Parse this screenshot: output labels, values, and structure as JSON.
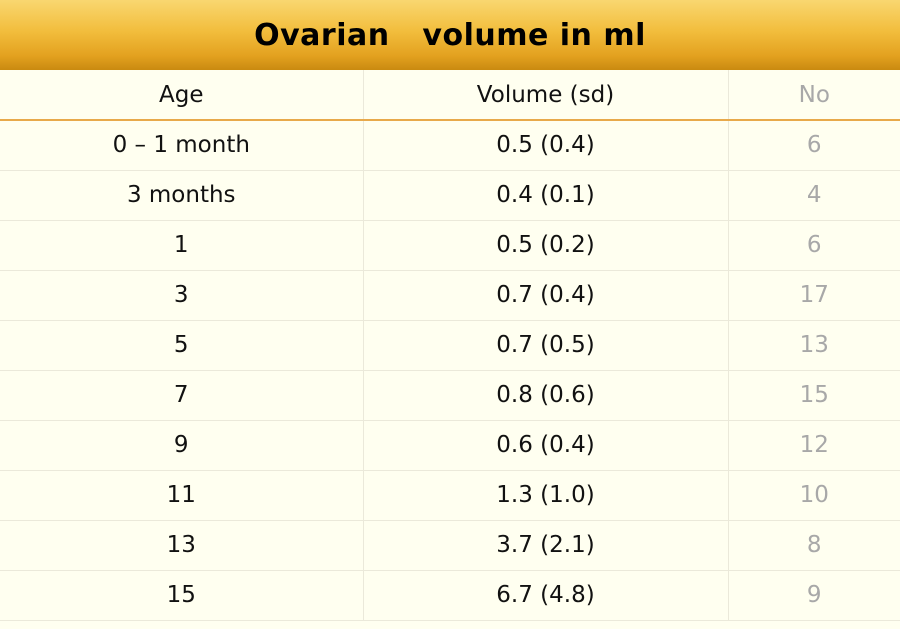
{
  "title": "Ovarian   volume in ml",
  "columns": [
    "Age",
    "Volume (sd)",
    "No"
  ],
  "rows": [
    {
      "age": "0 – 1 month",
      "volume": "0.5 (0.4)",
      "no": "6"
    },
    {
      "age": "3 months",
      "volume": "0.4 (0.1)",
      "no": "4"
    },
    {
      "age": "1",
      "volume": "0.5 (0.2)",
      "no": "6"
    },
    {
      "age": "3",
      "volume": "0.7 (0.4)",
      "no": "17"
    },
    {
      "age": "5",
      "volume": "0.7 (0.5)",
      "no": "13"
    },
    {
      "age": "7",
      "volume": "0.8 (0.6)",
      "no": "15"
    },
    {
      "age": "9",
      "volume": "0.6 (0.4)",
      "no": "12"
    },
    {
      "age": "11",
      "volume": "1.3 (1.0)",
      "no": "10"
    },
    {
      "age": "13",
      "volume": "3.7 (2.1)",
      "no": "8"
    },
    {
      "age": "15",
      "volume": "6.7 (4.8)",
      "no": "9"
    }
  ],
  "colors": {
    "header_gradient_top": "#f9d770",
    "header_gradient_bottom": "#c98a10",
    "background": "#fffff0",
    "header_rule": "#e8a94a",
    "muted_text": "#a8a8a8"
  }
}
